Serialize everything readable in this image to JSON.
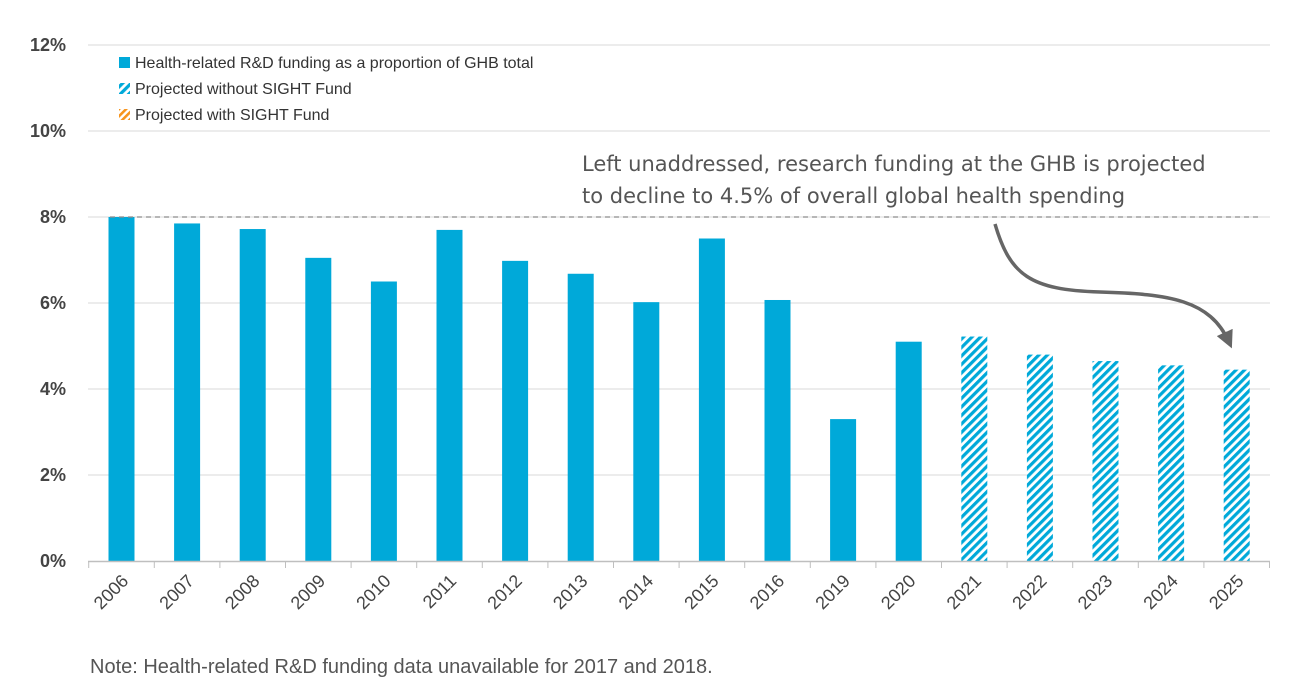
{
  "chart_data": {
    "type": "bar",
    "title": "",
    "xlabel": "",
    "ylabel": "",
    "ylim": [
      0,
      12
    ],
    "yticks": [
      "0%",
      "2%",
      "4%",
      "6%",
      "8%",
      "10%",
      "12%"
    ],
    "categories": [
      "2006",
      "2007",
      "2008",
      "2009",
      "2010",
      "2011",
      "2012",
      "2013",
      "2014",
      "2015",
      "2016",
      "2019",
      "2020",
      "2021",
      "2022",
      "2023",
      "2024",
      "2025"
    ],
    "series": [
      {
        "name": "Health-related R&D funding as a proportion of GHB total",
        "values": [
          8.0,
          7.85,
          7.72,
          7.05,
          6.5,
          7.7,
          6.98,
          6.68,
          6.02,
          7.5,
          6.07,
          3.3,
          5.1,
          null,
          null,
          null,
          null,
          null
        ],
        "color": "#00a9d9"
      },
      {
        "name": "Projected without SIGHT Fund",
        "values": [
          null,
          null,
          null,
          null,
          null,
          null,
          null,
          null,
          null,
          null,
          null,
          null,
          null,
          5.22,
          4.8,
          4.65,
          4.55,
          4.45
        ],
        "color": "#00a9d9"
      }
    ],
    "legend": [
      {
        "label": "Health-related R&D funding as a proportion of GHB total",
        "style": "solid",
        "color": "#00a9d9"
      },
      {
        "label": "Projected without SIGHT Fund",
        "style": "hatched",
        "color": "#00a9d9"
      },
      {
        "label": "Projected with SIGHT Fund",
        "style": "hatched",
        "color": "#f7941d"
      }
    ],
    "legend_position": "top-left",
    "reference_line": {
      "value": 8.0,
      "style": "dashed"
    },
    "annotation": {
      "lines": [
        "Left unaddressed, research funding at the GHB is projected",
        "to decline to 4.5% of overall global health spending"
      ]
    },
    "grid": true
  },
  "note": "Note: Health-related R&D funding data unavailable for 2017 and 2018."
}
